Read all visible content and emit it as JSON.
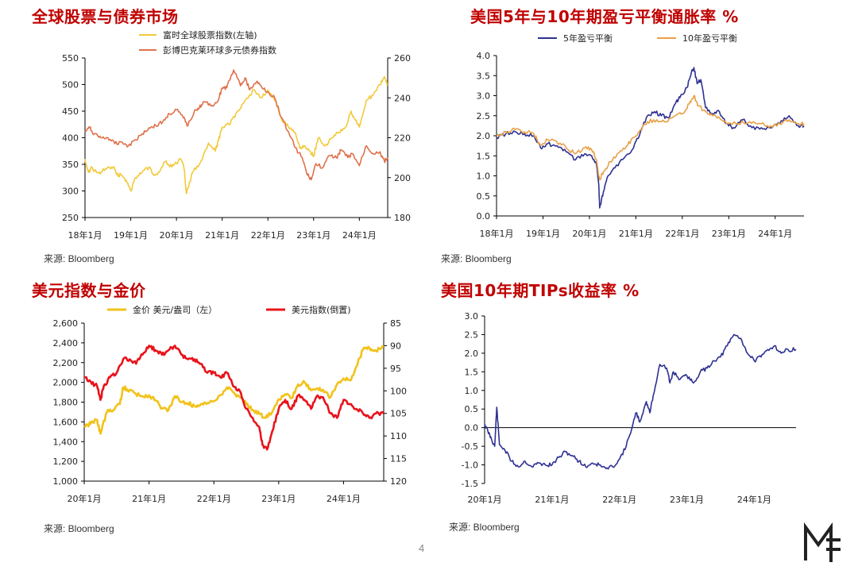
{
  "page_number": "4",
  "source_label": "来源: Bloomberg",
  "colors": {
    "title_red": "#c00000",
    "ftse_yellow": "#f2c93a",
    "bbg_orange": "#e0714a",
    "bei5_navy": "#2e3192",
    "bei10_orange": "#e9a046",
    "gold_yellow": "#f2c21a",
    "dxy_red": "#e8141b",
    "tips_navy": "#2e3192"
  },
  "chart_data": [
    {
      "id": "equity-bond",
      "type": "line",
      "title": "全球股票与债券市场",
      "x_categories": [
        "18年1月",
        "19年1月",
        "20年1月",
        "21年1月",
        "22年1月",
        "23年1月",
        "24年1月"
      ],
      "x_range": [
        2018.0,
        2024.62
      ],
      "y_left": {
        "range": [
          250,
          550
        ],
        "ticks": [
          250,
          300,
          350,
          400,
          450,
          500,
          550
        ]
      },
      "y_right": {
        "range": [
          180,
          260
        ],
        "ticks": [
          180,
          200,
          220,
          240,
          260
        ]
      },
      "legend_position": "top-center",
      "series": [
        {
          "name": "富时全球股票指数(左轴)",
          "axis": "left",
          "color": "#f2c93a",
          "x": [
            2018.0,
            2018.08,
            2018.15,
            2018.25,
            2018.35,
            2018.5,
            2018.62,
            2018.7,
            2018.8,
            2018.9,
            2019.0,
            2019.1,
            2019.25,
            2019.4,
            2019.5,
            2019.6,
            2019.75,
            2019.9,
            2020.0,
            2020.1,
            2020.17,
            2020.22,
            2020.35,
            2020.5,
            2020.7,
            2020.85,
            2020.92,
            2021.0,
            2021.15,
            2021.3,
            2021.5,
            2021.7,
            2021.85,
            2022.0,
            2022.15,
            2022.3,
            2022.45,
            2022.6,
            2022.7,
            2022.8,
            2022.92,
            2023.0,
            2023.1,
            2023.25,
            2023.4,
            2023.55,
            2023.7,
            2023.82,
            2023.9,
            2024.0,
            2024.15,
            2024.3,
            2024.45,
            2024.55,
            2024.62
          ],
          "y": [
            360,
            335,
            345,
            335,
            335,
            345,
            345,
            330,
            330,
            320,
            300,
            325,
            335,
            345,
            330,
            335,
            355,
            345,
            352,
            360,
            340,
            295,
            335,
            350,
            390,
            375,
            395,
            420,
            425,
            445,
            470,
            490,
            475,
            490,
            470,
            435,
            420,
            410,
            380,
            385,
            375,
            365,
            400,
            385,
            400,
            410,
            420,
            450,
            435,
            420,
            470,
            480,
            500,
            515,
            500
          ]
        },
        {
          "name": "彭博巴克莱环球多元债券指数",
          "axis": "right",
          "color": "#e0714a",
          "x": [
            2018.0,
            2018.1,
            2018.2,
            2018.35,
            2018.5,
            2018.65,
            2018.8,
            2018.95,
            2019.1,
            2019.25,
            2019.4,
            2019.55,
            2019.7,
            2019.85,
            2020.0,
            2020.15,
            2020.25,
            2020.4,
            2020.5,
            2020.6,
            2020.75,
            2020.9,
            2021.0,
            2021.1,
            2021.25,
            2021.4,
            2021.5,
            2021.6,
            2021.75,
            2021.85,
            2022.0,
            2022.15,
            2022.3,
            2022.45,
            2022.6,
            2022.75,
            2022.85,
            2022.95,
            2023.05,
            2023.2,
            2023.35,
            2023.5,
            2023.6,
            2023.75,
            2023.85,
            2024.0,
            2024.15,
            2024.3,
            2024.45,
            2024.55,
            2024.62
          ],
          "y": [
            223,
            225,
            222,
            220,
            220,
            217,
            218,
            216,
            219,
            222,
            225,
            226,
            228,
            232,
            234,
            230,
            226,
            234,
            235,
            238,
            236,
            238,
            245,
            245,
            254,
            246,
            250,
            244,
            248,
            246,
            243,
            240,
            230,
            223,
            215,
            210,
            202,
            199,
            207,
            205,
            211,
            210,
            214,
            210,
            212,
            206,
            216,
            212,
            213,
            208,
            210
          ]
        }
      ]
    },
    {
      "id": "breakeven",
      "type": "line",
      "title": "美国5年与10年期盈亏平衡通胀率 %",
      "x_categories": [
        "18年1月",
        "19年1月",
        "20年1月",
        "21年1月",
        "22年1月",
        "23年1月",
        "24年1月"
      ],
      "x_range": [
        2018.0,
        2024.62
      ],
      "y": {
        "range": [
          0.0,
          4.0
        ],
        "ticks": [
          "0.0",
          "0.5",
          "1.0",
          "1.5",
          "2.0",
          "2.5",
          "3.0",
          "3.5",
          "4.0"
        ]
      },
      "legend_position": "top-center",
      "series": [
        {
          "name": "5年盈亏平衡",
          "color": "#2e3192",
          "x": [
            2018.0,
            2018.2,
            2018.4,
            2018.6,
            2018.8,
            2018.95,
            2019.1,
            2019.3,
            2019.5,
            2019.7,
            2019.9,
            2020.05,
            2020.15,
            2020.2,
            2020.22,
            2020.3,
            2020.4,
            2020.55,
            2020.75,
            2020.95,
            2021.1,
            2021.25,
            2021.4,
            2021.55,
            2021.7,
            2021.85,
            2021.95,
            2022.1,
            2022.2,
            2022.25,
            2022.32,
            2022.4,
            2022.5,
            2022.65,
            2022.8,
            2022.95,
            2023.1,
            2023.3,
            2023.5,
            2023.7,
            2023.9,
            2024.1,
            2024.3,
            2024.5,
            2024.62
          ],
          "y": [
            1.95,
            2.05,
            2.1,
            2.05,
            2.0,
            1.7,
            1.8,
            1.75,
            1.6,
            1.4,
            1.55,
            1.5,
            1.3,
            0.8,
            0.2,
            0.6,
            1.0,
            1.2,
            1.45,
            1.7,
            2.1,
            2.5,
            2.6,
            2.5,
            2.45,
            2.8,
            2.95,
            3.2,
            3.6,
            3.7,
            3.3,
            3.4,
            2.7,
            2.55,
            2.6,
            2.3,
            2.2,
            2.4,
            2.2,
            2.2,
            2.2,
            2.3,
            2.5,
            2.25,
            2.25
          ]
        },
        {
          "name": "10年盈亏平衡",
          "color": "#e9a046",
          "x": [
            2018.0,
            2018.2,
            2018.4,
            2018.6,
            2018.8,
            2018.95,
            2019.1,
            2019.3,
            2019.5,
            2019.7,
            2019.9,
            2020.05,
            2020.15,
            2020.22,
            2020.3,
            2020.45,
            2020.6,
            2020.8,
            2020.95,
            2021.1,
            2021.25,
            2021.45,
            2021.65,
            2021.85,
            2022.0,
            2022.15,
            2022.25,
            2022.35,
            2022.5,
            2022.65,
            2022.8,
            2022.95,
            2023.2,
            2023.45,
            2023.7,
            2023.9,
            2024.1,
            2024.3,
            2024.5,
            2024.62
          ],
          "y": [
            2.0,
            2.1,
            2.15,
            2.1,
            2.05,
            1.75,
            1.9,
            1.85,
            1.7,
            1.55,
            1.7,
            1.65,
            1.4,
            0.9,
            1.1,
            1.35,
            1.55,
            1.75,
            1.95,
            2.15,
            2.35,
            2.4,
            2.35,
            2.5,
            2.55,
            2.8,
            3.0,
            2.75,
            2.6,
            2.5,
            2.45,
            2.3,
            2.3,
            2.35,
            2.3,
            2.25,
            2.3,
            2.4,
            2.3,
            2.3
          ]
        }
      ]
    },
    {
      "id": "dxy-gold",
      "type": "line",
      "title": "美元指数与金价",
      "x_categories": [
        "20年1月",
        "21年1月",
        "22年1月",
        "23年1月",
        "24年1月"
      ],
      "x_range": [
        2020.0,
        2024.62
      ],
      "y_left": {
        "range": [
          1000,
          2600
        ],
        "ticks": [
          "1,000",
          "1,200",
          "1,400",
          "1,600",
          "1,800",
          "2,000",
          "2,200",
          "2,400",
          "2,600"
        ]
      },
      "y_right": {
        "range": [
          120,
          85
        ],
        "inverted": true,
        "ticks": [
          85,
          90,
          95,
          100,
          105,
          110,
          115,
          120
        ]
      },
      "legend_position": "top",
      "series": [
        {
          "name": "金价 美元/盎司（左）",
          "axis": "left",
          "color": "#f2c21a",
          "x": [
            2020.0,
            2020.1,
            2020.2,
            2020.25,
            2020.35,
            2020.45,
            2020.55,
            2020.6,
            2020.7,
            2020.8,
            2020.9,
            2021.0,
            2021.1,
            2021.2,
            2021.3,
            2021.4,
            2021.5,
            2021.6,
            2021.7,
            2021.8,
            2021.9,
            2022.0,
            2022.1,
            2022.2,
            2022.3,
            2022.4,
            2022.5,
            2022.6,
            2022.7,
            2022.8,
            2022.9,
            2023.0,
            2023.1,
            2023.2,
            2023.3,
            2023.4,
            2023.5,
            2023.6,
            2023.7,
            2023.8,
            2023.9,
            2024.0,
            2024.1,
            2024.2,
            2024.3,
            2024.4,
            2024.5,
            2024.62
          ],
          "y": [
            1560,
            1580,
            1620,
            1480,
            1700,
            1720,
            1780,
            1950,
            1920,
            1880,
            1860,
            1870,
            1820,
            1740,
            1720,
            1860,
            1800,
            1790,
            1760,
            1780,
            1790,
            1810,
            1870,
            1950,
            1900,
            1850,
            1780,
            1720,
            1680,
            1640,
            1700,
            1830,
            1880,
            1840,
            1980,
            2000,
            1920,
            1940,
            1900,
            1850,
            1980,
            2040,
            2020,
            2160,
            2330,
            2350,
            2320,
            2360
          ]
        },
        {
          "name": "美元指数(倒置)",
          "axis": "right",
          "color": "#e8141b",
          "x": [
            2020.0,
            2020.1,
            2020.2,
            2020.25,
            2020.3,
            2020.4,
            2020.5,
            2020.6,
            2020.7,
            2020.8,
            2020.9,
            2021.0,
            2021.1,
            2021.2,
            2021.3,
            2021.4,
            2021.5,
            2021.6,
            2021.7,
            2021.8,
            2021.9,
            2022.0,
            2022.1,
            2022.2,
            2022.3,
            2022.4,
            2022.5,
            2022.6,
            2022.7,
            2022.75,
            2022.82,
            2022.9,
            2023.0,
            2023.1,
            2023.2,
            2023.3,
            2023.4,
            2023.5,
            2023.6,
            2023.7,
            2023.8,
            2023.9,
            2024.0,
            2024.1,
            2024.2,
            2024.3,
            2024.4,
            2024.5,
            2024.62
          ],
          "y": [
            97,
            98,
            99,
            102,
            99,
            97,
            96,
            93,
            93,
            94,
            92,
            90,
            91,
            92,
            91,
            90,
            92,
            93,
            93,
            94,
            96,
            96,
            97,
            96,
            99,
            100,
            104,
            106,
            108,
            112,
            113,
            109,
            104,
            102,
            104,
            101,
            102,
            104,
            101,
            102,
            105,
            106,
            102,
            103,
            104,
            105,
            106,
            105,
            105
          ]
        }
      ]
    },
    {
      "id": "tips",
      "type": "line",
      "title": "美国10年期TIPs收益率 %",
      "x_categories": [
        "20年1月",
        "21年1月",
        "22年1月",
        "23年1月",
        "24年1月"
      ],
      "x_range": [
        2020.0,
        2024.62
      ],
      "y": {
        "range": [
          -1.5,
          3.0
        ],
        "ticks": [
          "-1.5",
          "-1.0",
          "-0.5",
          "0.0",
          "0.5",
          "1.0",
          "1.5",
          "2.0",
          "2.5",
          "3.0"
        ]
      },
      "series": [
        {
          "name": "",
          "color": "#2e3192",
          "x": [
            2020.0,
            2020.05,
            2020.1,
            2020.15,
            2020.18,
            2020.22,
            2020.3,
            2020.4,
            2020.5,
            2020.6,
            2020.7,
            2020.8,
            2020.9,
            2021.0,
            2021.1,
            2021.2,
            2021.3,
            2021.4,
            2021.5,
            2021.6,
            2021.7,
            2021.8,
            2021.9,
            2022.0,
            2022.1,
            2022.2,
            2022.25,
            2022.3,
            2022.4,
            2022.45,
            2022.5,
            2022.6,
            2022.7,
            2022.75,
            2022.8,
            2022.9,
            2023.0,
            2023.1,
            2023.2,
            2023.3,
            2023.4,
            2023.5,
            2023.6,
            2023.7,
            2023.8,
            2023.9,
            2024.0,
            2024.1,
            2024.2,
            2024.3,
            2024.4,
            2024.5,
            2024.62
          ],
          "y": [
            0.1,
            -0.1,
            -0.3,
            -0.5,
            0.55,
            -0.45,
            -0.6,
            -0.9,
            -1.05,
            -0.9,
            -1.05,
            -0.95,
            -1.0,
            -1.0,
            -0.8,
            -0.65,
            -0.75,
            -0.9,
            -1.05,
            -0.95,
            -1.0,
            -1.1,
            -1.05,
            -0.85,
            -0.5,
            0.1,
            0.4,
            0.15,
            0.7,
            0.4,
            0.85,
            1.7,
            1.6,
            1.2,
            1.5,
            1.3,
            1.4,
            1.2,
            1.5,
            1.6,
            1.8,
            1.9,
            2.2,
            2.5,
            2.4,
            2.0,
            1.8,
            1.9,
            2.1,
            2.2,
            2.0,
            2.1,
            2.1
          ]
        }
      ]
    }
  ]
}
